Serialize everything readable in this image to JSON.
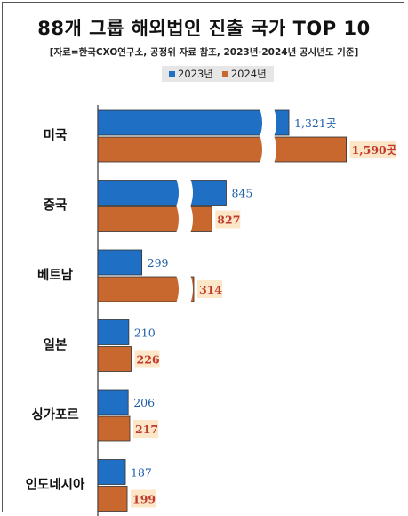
{
  "title": "88개 그룹 해외법인 진출 국가 TOP 10",
  "subtitle": "[자료=한국CXO연구소, 공정위 자료 참조, 2023년·2024년 공시년도 기준]",
  "colors": {
    "series_2023": "#1f6fc4",
    "series_2024": "#c8682e",
    "label_2023": "#1f5fa8",
    "label_2024": "#c0392b",
    "label_2024_bg": "#fbe6c8"
  },
  "chart_data": {
    "type": "bar",
    "orientation": "horizontal",
    "axis_break": true,
    "categories": [
      "미국",
      "중국",
      "베트남",
      "일본",
      "싱가포르",
      "인도네시아"
    ],
    "series": [
      {
        "name": "2023년",
        "values": [
          1321,
          845,
          299,
          210,
          206,
          187
        ],
        "labels": [
          "1,321곳",
          "845",
          "299",
          "210",
          "206",
          "187"
        ]
      },
      {
        "name": "2024년",
        "values": [
          1590,
          827,
          314,
          226,
          217,
          199
        ],
        "labels": [
          "1,590곳",
          "827",
          "314",
          "226",
          "217",
          "199"
        ]
      }
    ],
    "legend_position": "top-center",
    "grid": false
  }
}
